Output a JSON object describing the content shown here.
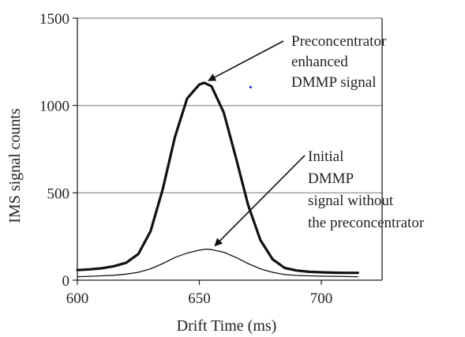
{
  "chart_data": {
    "type": "line",
    "xlabel": "Drift Time (ms)",
    "ylabel": "IMS signal counts",
    "xlim": [
      600,
      720
    ],
    "ylim": [
      0,
      1500
    ],
    "xticks": [
      600,
      650,
      700
    ],
    "yticks": [
      0,
      500,
      1000,
      1500
    ],
    "grid": "horizontal",
    "series": [
      {
        "key": "enhanced",
        "style": "thick",
        "x": [
          600,
          605,
          610,
          615,
          620,
          625,
          630,
          635,
          640,
          645,
          650,
          652,
          655,
          660,
          665,
          670,
          675,
          680,
          685,
          690,
          695,
          700,
          705,
          710,
          715
        ],
        "y": [
          58,
          62,
          68,
          80,
          100,
          150,
          280,
          520,
          820,
          1040,
          1120,
          1130,
          1110,
          960,
          700,
          430,
          230,
          120,
          70,
          55,
          48,
          45,
          43,
          42,
          42
        ]
      },
      {
        "key": "initial",
        "style": "thin",
        "x": [
          600,
          605,
          610,
          615,
          620,
          625,
          630,
          635,
          640,
          645,
          650,
          653,
          655,
          660,
          665,
          670,
          675,
          680,
          685,
          690,
          695,
          700,
          705,
          710,
          715
        ],
        "y": [
          20,
          22,
          25,
          28,
          35,
          45,
          65,
          95,
          130,
          155,
          172,
          178,
          175,
          160,
          130,
          95,
          65,
          45,
          32,
          27,
          25,
          23,
          22,
          21,
          20
        ]
      }
    ],
    "annotations": [
      {
        "key": "enhanced",
        "lines": [
          "Preconcentrator",
          "enhanced",
          "DMMP signal"
        ],
        "arrow_to": {
          "x": 652,
          "y": 1130
        }
      },
      {
        "key": "initial",
        "lines": [
          "Initial",
          "DMMP",
          "signal without",
          "the preconcentrator"
        ],
        "arrow_to": {
          "x": 655,
          "y": 178
        }
      }
    ],
    "colors": {
      "line": "#111111",
      "grid": "#888888",
      "marker": "#2233cc"
    },
    "stray_marker": {
      "x": 671,
      "y": 1105
    }
  }
}
